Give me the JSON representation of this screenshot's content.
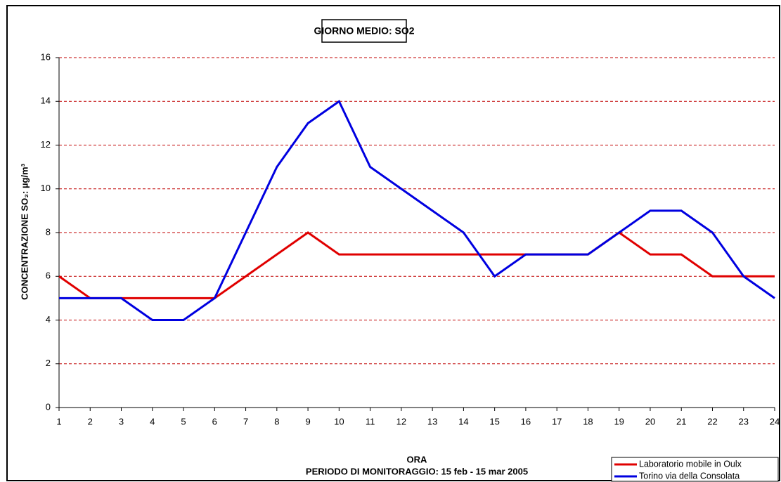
{
  "chart_data": {
    "type": "line",
    "title": "GIORNO MEDIO: SO2",
    "x_label": "ORA",
    "subtitle": "PERIODO DI MONITORAGGIO: 15 feb - 15 mar 2005",
    "y_label": "CONCENTRAZIONE SO₂: µg/m³",
    "x": [
      1,
      2,
      3,
      4,
      5,
      6,
      7,
      8,
      9,
      10,
      11,
      12,
      13,
      14,
      15,
      16,
      17,
      18,
      19,
      20,
      21,
      22,
      23,
      24
    ],
    "xlim": [
      1,
      24
    ],
    "xticks": [
      1,
      2,
      3,
      4,
      5,
      6,
      7,
      8,
      9,
      10,
      11,
      12,
      13,
      14,
      15,
      16,
      17,
      18,
      19,
      20,
      21,
      22,
      23,
      24
    ],
    "ylim": [
      0,
      16
    ],
    "yticks": [
      0,
      2,
      4,
      6,
      8,
      10,
      12,
      14,
      16
    ],
    "grid": true,
    "legend": "bottom-right",
    "series": [
      {
        "name": "Laboratorio mobile in Oulx",
        "color": "#e00000",
        "values": [
          6,
          5,
          5,
          5,
          5,
          5,
          6,
          7,
          8,
          7,
          7,
          7,
          7,
          7,
          7,
          7,
          7,
          7,
          8,
          7,
          7,
          6,
          6,
          6
        ]
      },
      {
        "name": "Torino via della Consolata",
        "color": "#0000e0",
        "values": [
          5,
          5,
          5,
          4,
          4,
          5,
          8,
          11,
          13,
          14,
          11,
          10,
          9,
          8,
          6,
          7,
          7,
          7,
          8,
          9,
          9,
          8,
          6,
          5
        ]
      }
    ]
  }
}
